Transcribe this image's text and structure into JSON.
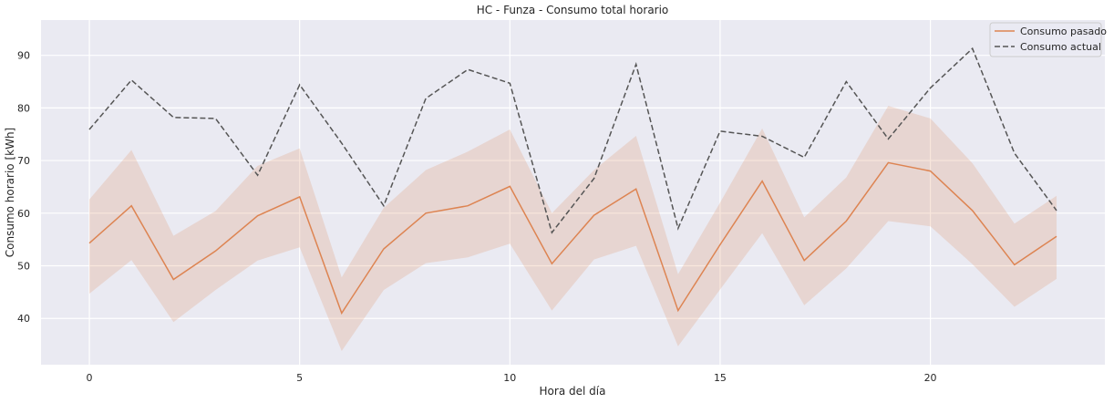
{
  "chart_data": {
    "type": "line",
    "title": "HC - Funza - Consumo total horario",
    "xlabel": "Hora del día",
    "ylabel": "Consumo horario [kWh]",
    "xlim": [
      -1.15,
      24.15
    ],
    "ylim": [
      31.2,
      96.7
    ],
    "xticks": [
      0,
      5,
      10,
      15,
      20
    ],
    "yticks": [
      40,
      50,
      60,
      70,
      80,
      90
    ],
    "grid": true,
    "legend_position": "top-right",
    "x": [
      0,
      1,
      2,
      3,
      4,
      5,
      6,
      7,
      8,
      9,
      10,
      11,
      12,
      13,
      14,
      15,
      16,
      17,
      18,
      19,
      20,
      21,
      22,
      23
    ],
    "series": [
      {
        "name": "Consumo pasado",
        "style": "solid",
        "color": "#dd8452",
        "values": [
          54.3,
          61.4,
          47.4,
          52.8,
          59.5,
          63.1,
          41.0,
          53.2,
          60.0,
          61.4,
          65.1,
          50.4,
          59.6,
          64.6,
          41.5,
          54.0,
          66.1,
          51.0,
          58.5,
          69.6,
          68.0,
          60.5,
          50.2,
          55.6
        ],
        "ci_lower": [
          44.7,
          51.1,
          39.3,
          45.4,
          51.0,
          53.5,
          33.8,
          45.4,
          50.5,
          51.6,
          54.2,
          41.5,
          51.2,
          53.8,
          34.7,
          45.5,
          56.2,
          42.5,
          49.5,
          58.5,
          57.5,
          50.3,
          42.2,
          47.5
        ],
        "ci_upper": [
          62.6,
          72.0,
          55.7,
          60.4,
          69.0,
          72.3,
          47.8,
          61.0,
          68.2,
          71.7,
          75.9,
          60.0,
          68.2,
          74.7,
          48.4,
          62.0,
          76.1,
          59.2,
          66.8,
          80.4,
          78.0,
          69.5,
          58.0,
          63.3
        ]
      },
      {
        "name": "Consumo actual",
        "style": "dashed",
        "color": "#555555",
        "values": [
          75.9,
          85.3,
          78.2,
          78.0,
          67.2,
          84.4,
          73.3,
          61.4,
          81.8,
          87.3,
          84.7,
          56.3,
          66.6,
          88.3,
          57.1,
          75.6,
          74.6,
          70.6,
          85.0,
          74.1,
          83.8,
          91.3,
          71.4,
          60.5
        ]
      }
    ]
  }
}
